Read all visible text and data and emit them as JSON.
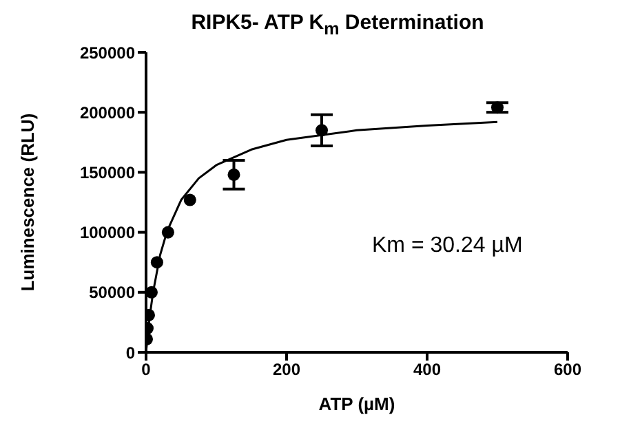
{
  "chart_data": {
    "type": "scatter",
    "title": "RIPK5- ATP K$_{m}$ Determination",
    "xlabel": "ATP (µM)",
    "ylabel": "Luminescence (RLU)",
    "annotations": [
      "Km = 30.24 µM"
    ],
    "x": [
      0.98,
      1.95,
      3.9,
      7.8,
      15.6,
      31.25,
      62.5,
      125,
      250,
      500
    ],
    "series": [
      {
        "marker": "circle",
        "color": "#000000",
        "values": [
          11000,
          20000,
          31000,
          50000,
          75000,
          100000,
          127000,
          148000,
          185000,
          204000
        ],
        "errors": [
          null,
          null,
          null,
          null,
          null,
          null,
          null,
          12000,
          13000,
          4000
        ]
      },
      {
        "type": "line",
        "marker": "none",
        "color": "#000000",
        "x": [
          0,
          5,
          10,
          20,
          30,
          50,
          75,
          100,
          150,
          200,
          300,
          400,
          500
        ],
        "values": [
          0,
          29000,
          50000,
          81000,
          101000,
          127000,
          145000,
          156000,
          169000,
          177000,
          185000,
          189000,
          192000
        ]
      }
    ],
    "xlim": [
      0,
      600
    ],
    "xticks": [
      0,
      200,
      400,
      600
    ],
    "ylim": [
      0,
      250000
    ],
    "yticks": [
      0,
      50000,
      100000,
      150000,
      200000,
      250000
    ],
    "line_style": "solid",
    "grid": false,
    "legend": false
  }
}
